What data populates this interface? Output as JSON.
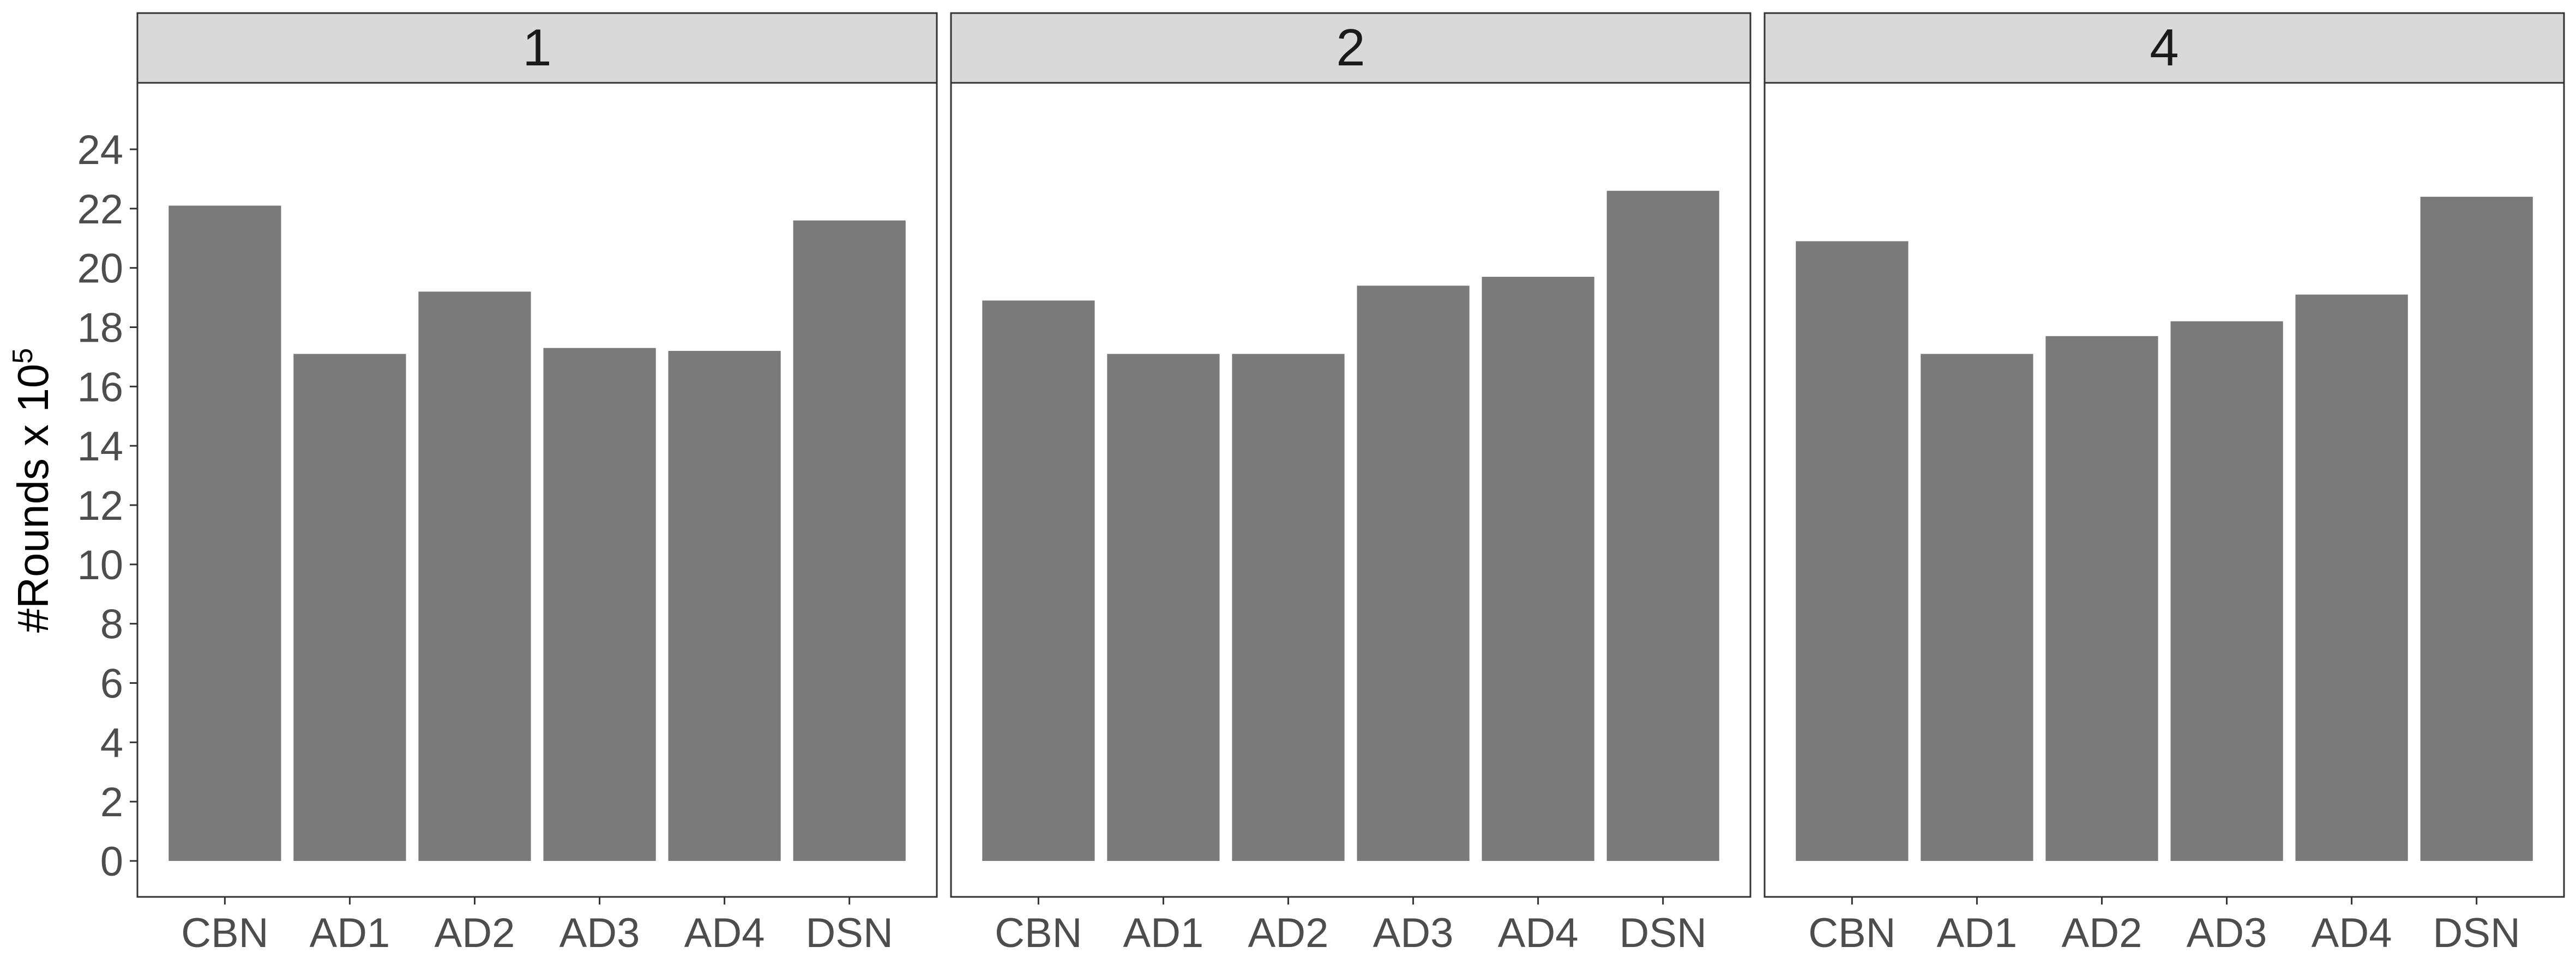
{
  "chart_data": {
    "type": "bar",
    "ylabel_base": "#Rounds x 10",
    "ylabel_exponent": "5",
    "ylim": [
      0,
      24
    ],
    "y_ticks": [
      0,
      2,
      4,
      6,
      8,
      10,
      12,
      14,
      16,
      18,
      20,
      22,
      24
    ],
    "grid": false,
    "categories": [
      "CBN",
      "AD1",
      "AD2",
      "AD3",
      "AD4",
      "DSN"
    ],
    "bar_color": "#7a7a7a",
    "strip_color": "#d9d9d9",
    "panels": [
      {
        "label": "1",
        "values": [
          22.1,
          17.1,
          19.2,
          17.3,
          17.2,
          21.6
        ]
      },
      {
        "label": "2",
        "values": [
          18.9,
          17.1,
          17.1,
          19.4,
          19.7,
          22.6
        ]
      },
      {
        "label": "4",
        "values": [
          20.9,
          17.1,
          17.7,
          18.2,
          19.1,
          22.4
        ]
      }
    ]
  }
}
